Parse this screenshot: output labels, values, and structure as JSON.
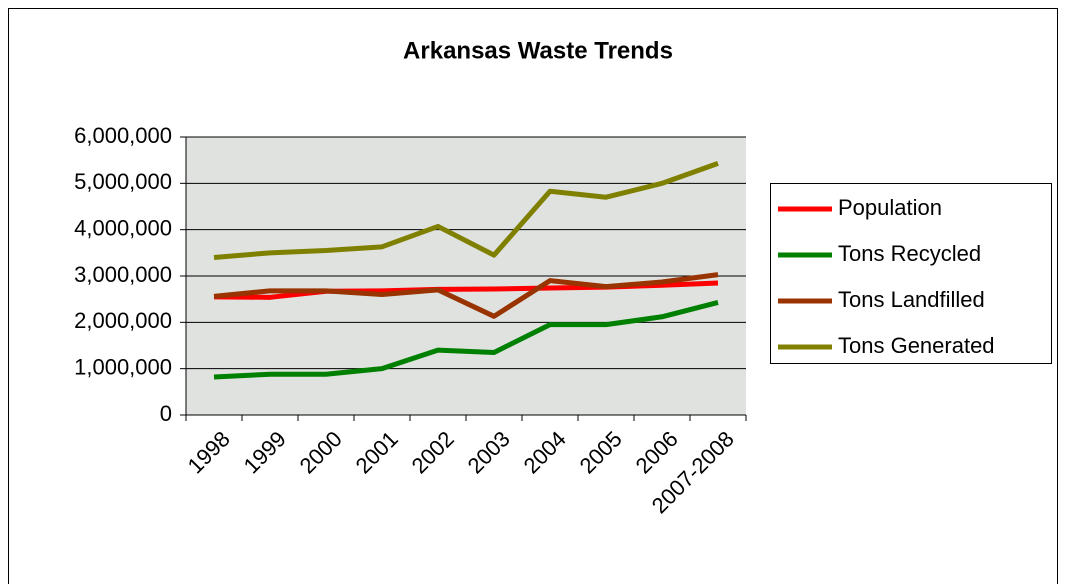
{
  "chart_data": {
    "type": "line",
    "title": "Arkansas Waste Trends",
    "categories": [
      "1998",
      "1999",
      "2000",
      "2001",
      "2002",
      "2003",
      "2004",
      "2005",
      "2006",
      "2007-2008"
    ],
    "series": [
      {
        "name": "Population",
        "color": "#ff0000",
        "values": [
          2550000,
          2540000,
          2670000,
          2680000,
          2710000,
          2720000,
          2740000,
          2760000,
          2800000,
          2850000
        ]
      },
      {
        "name": "Tons Recycled",
        "color": "#008000",
        "values": [
          820000,
          880000,
          880000,
          1000000,
          1400000,
          1350000,
          1950000,
          1950000,
          2120000,
          2430000
        ]
      },
      {
        "name": "Tons Landfilled",
        "color": "#993300",
        "values": [
          2560000,
          2680000,
          2680000,
          2600000,
          2700000,
          2130000,
          2900000,
          2770000,
          2870000,
          3030000
        ]
      },
      {
        "name": "Tons Generated",
        "color": "#808000",
        "values": [
          3400000,
          3500000,
          3550000,
          3630000,
          4070000,
          3450000,
          4830000,
          4700000,
          5000000,
          5430000
        ]
      }
    ],
    "ylim": [
      0,
      6000000
    ],
    "yticks": [
      0,
      {
        "value": 1000000,
        "label": "1,000,000"
      },
      {
        "value": 2000000,
        "label": "2,000,000"
      },
      {
        "value": 3000000,
        "label": "3,000,000"
      },
      {
        "value": 4000000,
        "label": "4,000,000"
      },
      {
        "value": 5000000,
        "label": "5,000,000"
      },
      {
        "value": 6000000,
        "label": "6,000,000"
      }
    ],
    "grid": true,
    "legend": "right"
  }
}
